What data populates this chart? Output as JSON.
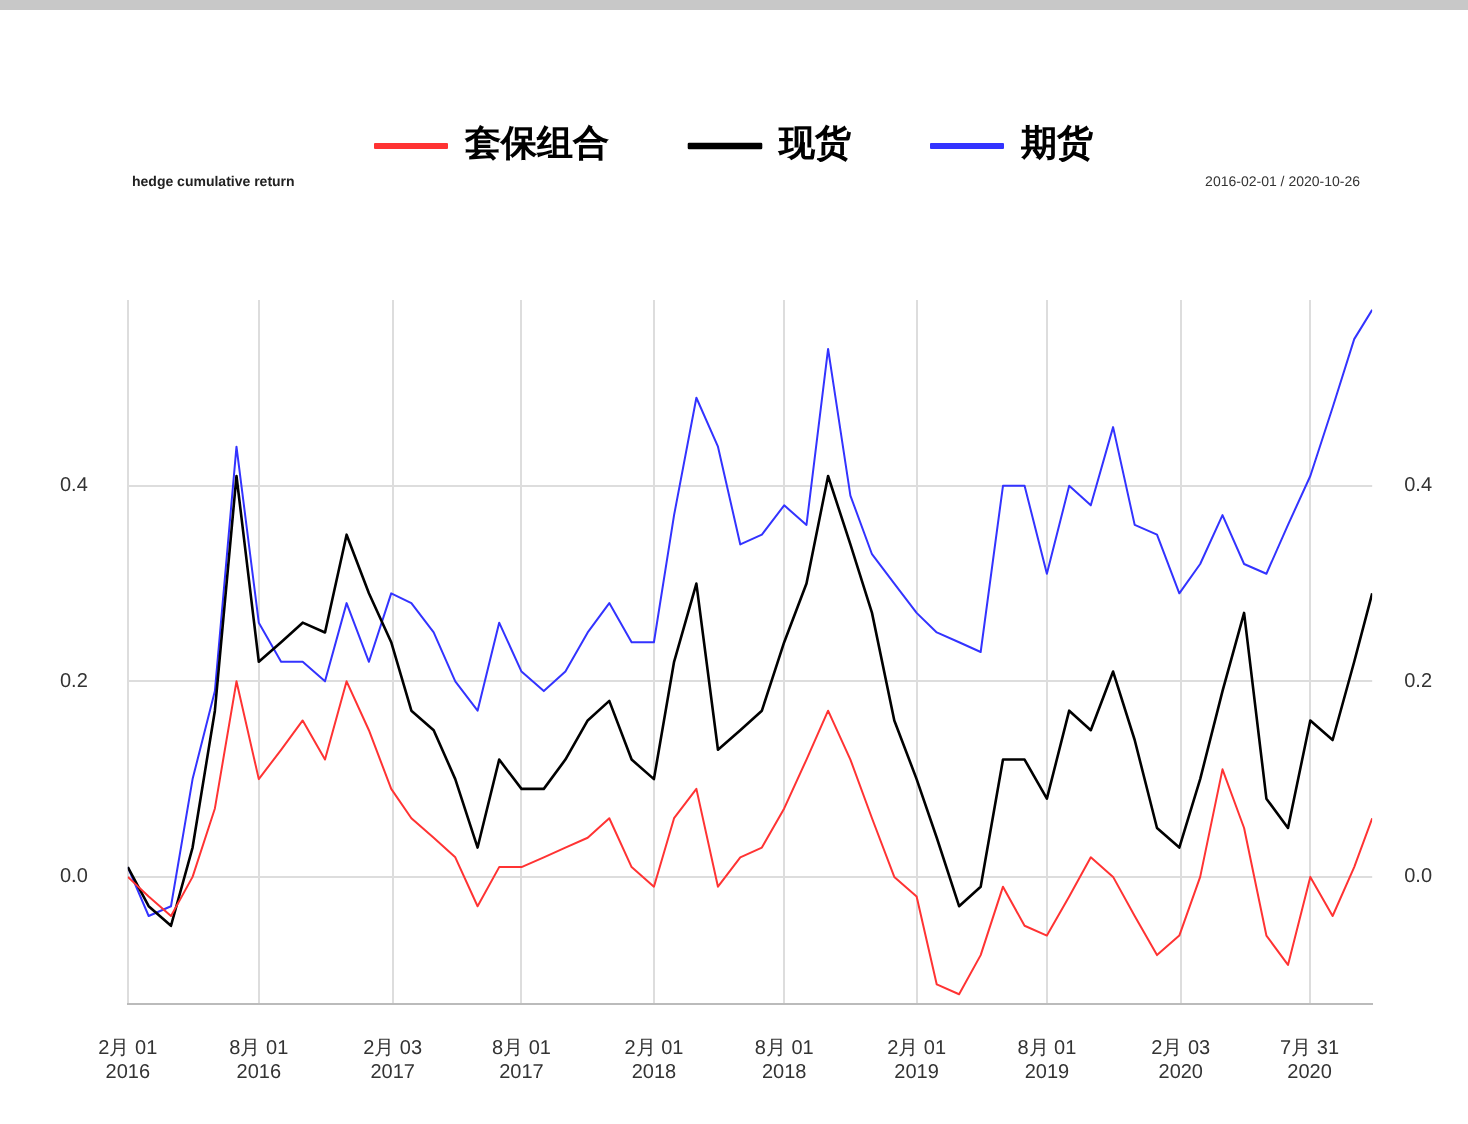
{
  "chart_data": {
    "type": "line",
    "title": "hedge cumulative return",
    "subtitle": "2016-02-01 / 2020-10-26",
    "x": [
      "2016-02-01",
      "2016-03-01",
      "2016-04-01",
      "2016-05-01",
      "2016-06-01",
      "2016-07-01",
      "2016-08-01",
      "2016-09-01",
      "2016-10-01",
      "2016-11-01",
      "2016-12-01",
      "2017-01-01",
      "2017-02-01",
      "2017-03-01",
      "2017-04-01",
      "2017-05-01",
      "2017-06-01",
      "2017-07-01",
      "2017-08-01",
      "2017-09-01",
      "2017-10-01",
      "2017-11-01",
      "2017-12-01",
      "2018-01-01",
      "2018-02-01",
      "2018-03-01",
      "2018-04-01",
      "2018-05-01",
      "2018-06-01",
      "2018-07-01",
      "2018-08-01",
      "2018-09-01",
      "2018-10-01",
      "2018-11-01",
      "2018-12-01",
      "2019-01-01",
      "2019-02-01",
      "2019-03-01",
      "2019-04-01",
      "2019-05-01",
      "2019-06-01",
      "2019-07-01",
      "2019-08-01",
      "2019-09-01",
      "2019-10-01",
      "2019-11-01",
      "2019-12-01",
      "2020-01-01",
      "2020-02-01",
      "2020-03-01",
      "2020-04-01",
      "2020-05-01",
      "2020-06-01",
      "2020-07-01",
      "2020-08-01",
      "2020-09-01",
      "2020-10-01",
      "2020-10-26"
    ],
    "series": [
      {
        "name": "套保组合",
        "color": "#ff3333",
        "values": [
          0.0,
          -0.02,
          -0.04,
          0.0,
          0.07,
          0.2,
          0.1,
          0.13,
          0.16,
          0.12,
          0.2,
          0.15,
          0.09,
          0.06,
          0.04,
          0.02,
          -0.03,
          0.01,
          0.01,
          0.02,
          0.03,
          0.04,
          0.06,
          0.01,
          -0.01,
          0.06,
          0.09,
          -0.01,
          0.02,
          0.03,
          0.07,
          0.12,
          0.17,
          0.12,
          0.06,
          0.0,
          -0.02,
          -0.11,
          -0.12,
          -0.08,
          -0.01,
          -0.05,
          -0.06,
          -0.02,
          0.02,
          0.0,
          -0.04,
          -0.08,
          -0.06,
          0.0,
          0.11,
          0.05,
          -0.06,
          -0.09,
          0.0,
          -0.04,
          0.01,
          0.06
        ]
      },
      {
        "name": "现货",
        "color": "#000000",
        "values": [
          0.01,
          -0.03,
          -0.05,
          0.03,
          0.17,
          0.41,
          0.22,
          0.24,
          0.26,
          0.25,
          0.35,
          0.29,
          0.24,
          0.17,
          0.15,
          0.1,
          0.03,
          0.12,
          0.09,
          0.09,
          0.12,
          0.16,
          0.18,
          0.12,
          0.1,
          0.22,
          0.3,
          0.13,
          0.15,
          0.17,
          0.24,
          0.3,
          0.41,
          0.34,
          0.27,
          0.16,
          0.1,
          0.04,
          -0.03,
          -0.01,
          0.12,
          0.12,
          0.08,
          0.17,
          0.15,
          0.21,
          0.14,
          0.05,
          0.03,
          0.1,
          0.19,
          0.27,
          0.08,
          0.05,
          0.16,
          0.14,
          0.22,
          0.29
        ]
      },
      {
        "name": "期货",
        "color": "#3333ff",
        "values": [
          0.01,
          -0.04,
          -0.03,
          0.1,
          0.19,
          0.44,
          0.26,
          0.22,
          0.22,
          0.2,
          0.28,
          0.22,
          0.29,
          0.28,
          0.25,
          0.2,
          0.17,
          0.26,
          0.21,
          0.19,
          0.21,
          0.25,
          0.28,
          0.24,
          0.24,
          0.37,
          0.49,
          0.44,
          0.34,
          0.35,
          0.38,
          0.36,
          0.54,
          0.39,
          0.33,
          0.3,
          0.27,
          0.25,
          0.24,
          0.23,
          0.4,
          0.4,
          0.31,
          0.4,
          0.38,
          0.46,
          0.36,
          0.35,
          0.29,
          0.32,
          0.37,
          0.32,
          0.31,
          0.36,
          0.41,
          0.48,
          0.55,
          0.58
        ]
      }
    ],
    "xlim": [
      "2016-02-01",
      "2020-10-26"
    ],
    "xticks": [
      {
        "value": "2016-02-01",
        "label": "2月 01\n2016"
      },
      {
        "value": "2016-08-01",
        "label": "8月 01\n2016"
      },
      {
        "value": "2017-02-03",
        "label": "2月 03\n2017"
      },
      {
        "value": "2017-08-01",
        "label": "8月 01\n2017"
      },
      {
        "value": "2018-02-01",
        "label": "2月 01\n2018"
      },
      {
        "value": "2018-08-01",
        "label": "8月 01\n2018"
      },
      {
        "value": "2019-02-01",
        "label": "2月 01\n2019"
      },
      {
        "value": "2019-08-01",
        "label": "8月 01\n2019"
      },
      {
        "value": "2020-02-03",
        "label": "2月 03\n2020"
      },
      {
        "value": "2020-07-31",
        "label": "7月 31\n2020"
      }
    ],
    "ylim": [
      -0.13,
      0.59
    ],
    "yticks": [
      {
        "value": 0,
        "label": "0.0"
      },
      {
        "value": 0.2,
        "label": "0.2"
      },
      {
        "value": 0.4,
        "label": "0.4"
      }
    ],
    "y2lim": [
      -0.13,
      0.59
    ],
    "y2ticks": [
      {
        "value": 0,
        "label": "0.0"
      },
      {
        "value": 0.2,
        "label": "0.2"
      },
      {
        "value": 0.4,
        "label": "0.4"
      }
    ],
    "grid": true,
    "legend": "top",
    "line_style": "solid",
    "marker": "none"
  }
}
